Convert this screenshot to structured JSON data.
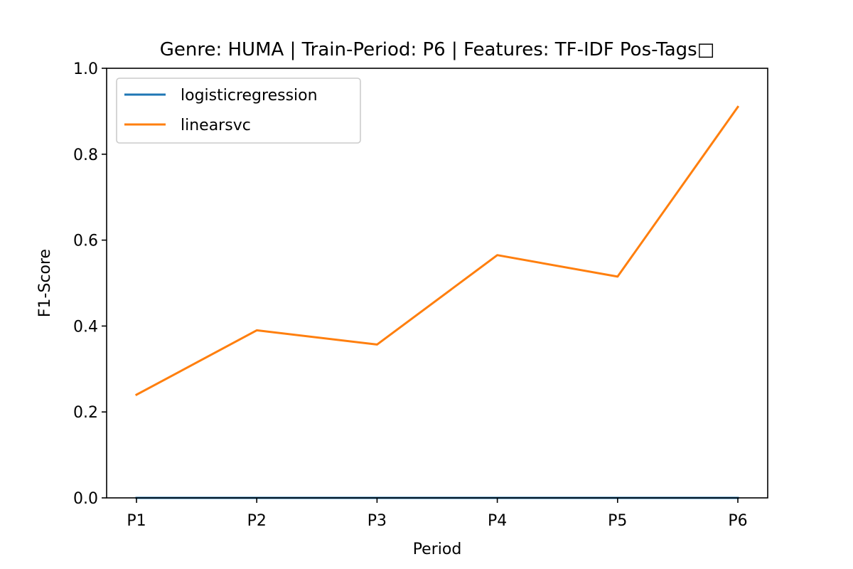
{
  "chart_data": {
    "type": "line",
    "title": "Genre: HUMA | Train-Period: P6 | Features: TF-IDF Pos-Tags□",
    "xlabel": "Period",
    "ylabel": "F1-Score",
    "categories": [
      "P1",
      "P2",
      "P3",
      "P4",
      "P5",
      "P6"
    ],
    "ylim": [
      0.0,
      1.0
    ],
    "yticks": [
      "0.0",
      "0.2",
      "0.4",
      "0.6",
      "0.8",
      "1.0"
    ],
    "grid": false,
    "legend_position": "top-left",
    "series": [
      {
        "name": "logisticregression",
        "color": "#1f77b4",
        "values": [
          0.0,
          0.0,
          0.0,
          0.0,
          0.0,
          0.0
        ]
      },
      {
        "name": "linearsvc",
        "color": "#ff7f0e",
        "values": [
          0.24,
          0.39,
          0.357,
          0.565,
          0.515,
          0.91
        ]
      }
    ]
  }
}
